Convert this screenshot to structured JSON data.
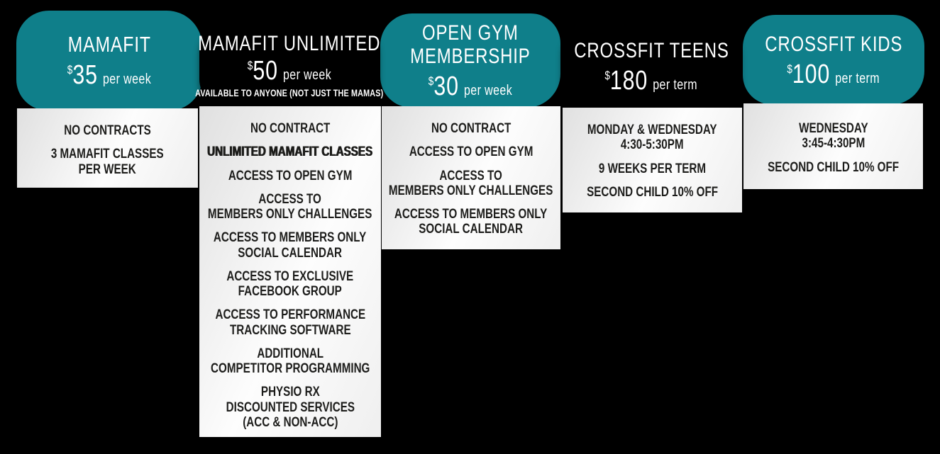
{
  "palette": {
    "teal": "#0f7f8a",
    "dark": "#000000",
    "background": "#000000",
    "panel_text": "#1d1d1b",
    "header_text": "#ffffff"
  },
  "cards": [
    {
      "name": "MAMAFIT",
      "theme": "teal",
      "title_lines": [
        "MAMAFIT"
      ],
      "price": {
        "currency": "$",
        "amount": "35",
        "period": "per week"
      },
      "features": [
        {
          "lines": [
            "NO CONTRACTS"
          ]
        },
        {
          "lines": [
            "3 MAMAFIT CLASSES",
            "PER WEEK"
          ]
        }
      ]
    },
    {
      "name": "MAMAFIT UNLIMITED",
      "theme": "dark",
      "title_lines": [
        "MAMAFIT UNLIMITED"
      ],
      "price": {
        "currency": "$",
        "amount": "50",
        "period": "per week"
      },
      "subnote": "AVAILABLE TO ANYONE (NOT JUST THE MAMAS)",
      "features": [
        {
          "lines": [
            "NO CONTRACT"
          ]
        },
        {
          "lines": [
            "UNLIMITED MAMAFIT CLASSES"
          ],
          "bold": true
        },
        {
          "lines": [
            "ACCESS TO OPEN GYM"
          ]
        },
        {
          "lines": [
            "ACCESS TO",
            "MEMBERS ONLY CHALLENGES"
          ]
        },
        {
          "lines": [
            "ACCESS TO MEMBERS ONLY",
            "SOCIAL CALENDAR"
          ]
        },
        {
          "lines": [
            "ACCESS TO EXCLUSIVE",
            "FACEBOOK GROUP"
          ]
        },
        {
          "lines": [
            "ACCESS TO PERFORMANCE",
            "TRACKING SOFTWARE"
          ]
        },
        {
          "lines": [
            "ADDITIONAL",
            "COMPETITOR PROGRAMMING"
          ]
        },
        {
          "lines": [
            "PHYSIO RX",
            "DISCOUNTED SERVICES",
            "(ACC & NON-ACC)"
          ]
        }
      ]
    },
    {
      "name": "OPEN GYM MEMBERSHIP",
      "theme": "teal",
      "title_lines": [
        "OPEN GYM",
        "MEMBERSHIP"
      ],
      "price": {
        "currency": "$",
        "amount": "30",
        "period": "per week"
      },
      "features": [
        {
          "lines": [
            "NO CONTRACT"
          ]
        },
        {
          "lines": [
            "ACCESS TO OPEN GYM"
          ]
        },
        {
          "lines": [
            "ACCESS TO",
            "MEMBERS ONLY CHALLENGES"
          ]
        },
        {
          "lines": [
            "ACCESS TO MEMBERS ONLY",
            "SOCIAL CALENDAR"
          ]
        }
      ]
    },
    {
      "name": "CROSSFIT TEENS",
      "theme": "dark",
      "title_lines": [
        "CROSSFIT TEENS"
      ],
      "price": {
        "currency": "$",
        "amount": "180",
        "period": "per term"
      },
      "features": [
        {
          "lines": [
            "MONDAY & WEDNESDAY",
            "4:30-5:30PM"
          ]
        },
        {
          "lines": [
            "9 WEEKS PER TERM"
          ]
        },
        {
          "lines": [
            "SECOND CHILD 10% OFF"
          ]
        }
      ]
    },
    {
      "name": "CROSSFIT KIDS",
      "theme": "teal",
      "title_lines": [
        "CROSSFIT KIDS"
      ],
      "price": {
        "currency": "$",
        "amount": "100",
        "period": "per term"
      },
      "features": [
        {
          "lines": [
            "WEDNESDAY",
            "3:45-4:30PM"
          ]
        },
        {
          "lines": [
            "SECOND CHILD 10% OFF"
          ]
        }
      ]
    }
  ]
}
